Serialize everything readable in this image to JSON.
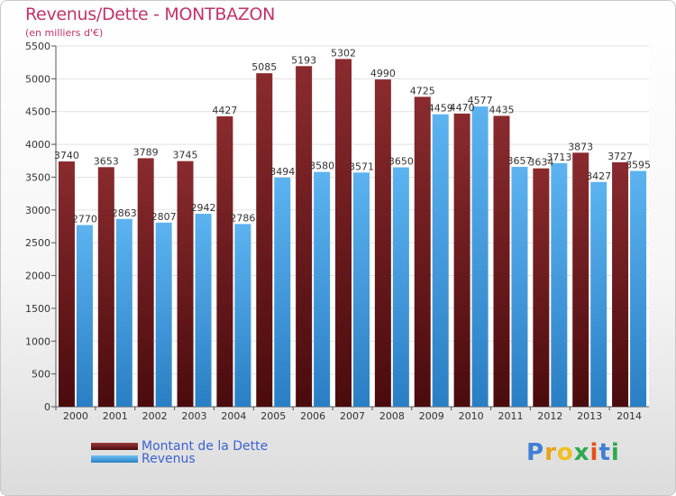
{
  "title": "Revenus/Dette - MONTBAZON",
  "subtitle": "(en milliers d'€)",
  "colors": {
    "debt": "#7a1f22",
    "revenue": "#4aa3e6",
    "title": "#c0336b",
    "legend_text": "#3d62d0"
  },
  "chart_data": {
    "type": "bar",
    "title": "Revenus/Dette - MONTBAZON",
    "ylabel": "(en milliers d'€)",
    "xlabel": "",
    "categories": [
      "2000",
      "2001",
      "2002",
      "2003",
      "2004",
      "2005",
      "2006",
      "2007",
      "2008",
      "2009",
      "2010",
      "2011",
      "2012",
      "2013",
      "2014"
    ],
    "series": [
      {
        "name": "Montant de la Dette",
        "color": "#7a1f22",
        "values": [
          3740,
          3653,
          3789,
          3745,
          4427,
          5085,
          5193,
          5302,
          4990,
          4725,
          4470,
          4435,
          3634,
          3873,
          3727
        ]
      },
      {
        "name": "Revenus",
        "color": "#4aa3e6",
        "values": [
          2770,
          2863,
          2807,
          2942,
          2786,
          3494,
          3580,
          3571,
          3650,
          4459,
          4577,
          3657,
          3713,
          3427,
          3595
        ]
      }
    ],
    "ylim": [
      0,
      5500
    ],
    "yticks": [
      0,
      500,
      1000,
      1500,
      2000,
      2500,
      3000,
      3500,
      4000,
      4500,
      5000,
      5500
    ],
    "grid": true,
    "legend_position": "bottom-left"
  },
  "legend": [
    {
      "label": "Montant de la Dette",
      "color": "#7a1f22"
    },
    {
      "label": "Revenus",
      "color": "#4aa3e6"
    }
  ],
  "logo": {
    "text": "Proxiti",
    "letters": [
      "P",
      "r",
      "o",
      "x",
      "i",
      "t",
      "i"
    ],
    "letter_colors": [
      "#3f7fd4",
      "#e8a21b",
      "#f0c020",
      "#2fa84f",
      "#e8501c",
      "#3f7fd4",
      "#2fa84f"
    ]
  }
}
